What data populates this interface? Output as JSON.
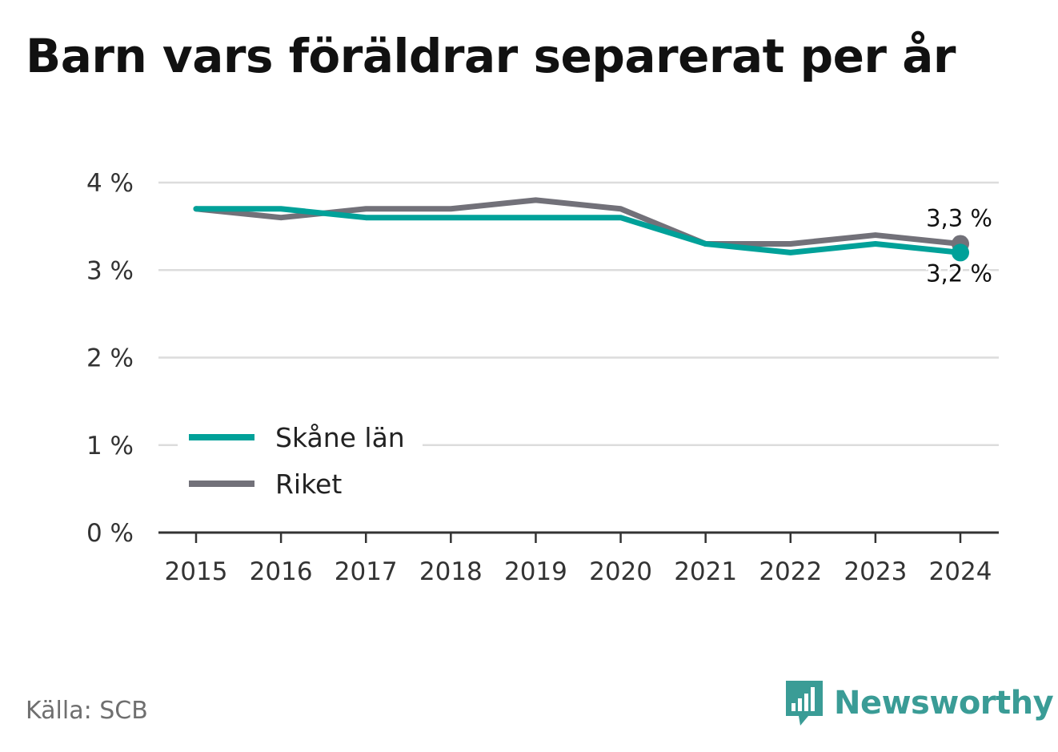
{
  "title": "Barn vars föräldrar separerat per år",
  "source": "Källa: SCB",
  "brand": "Newsworthy",
  "chart_data": {
    "type": "line",
    "title": "Barn vars föräldrar separerat per år",
    "x": [
      "2015",
      "2016",
      "2017",
      "2018",
      "2019",
      "2020",
      "2021",
      "2022",
      "2023",
      "2024"
    ],
    "y_ticks": [
      {
        "value": 0,
        "label": "0 %"
      },
      {
        "value": 1,
        "label": "1 %"
      },
      {
        "value": 2,
        "label": "2 %"
      },
      {
        "value": 3,
        "label": "3 %"
      },
      {
        "value": 4,
        "label": "4 %"
      }
    ],
    "ylim": [
      0,
      4
    ],
    "grid": true,
    "legend_position": "bottom-left",
    "series": [
      {
        "name": "Skåne län",
        "color": "#00a199",
        "values": [
          3.7,
          3.7,
          3.6,
          3.6,
          3.6,
          3.6,
          3.3,
          3.2,
          3.3,
          3.2
        ],
        "end_label": "3,2 %"
      },
      {
        "name": "Riket",
        "color": "#727179",
        "values": [
          3.7,
          3.6,
          3.7,
          3.7,
          3.8,
          3.7,
          3.3,
          3.3,
          3.4,
          3.3
        ],
        "end_label": "3,3 %"
      }
    ]
  }
}
